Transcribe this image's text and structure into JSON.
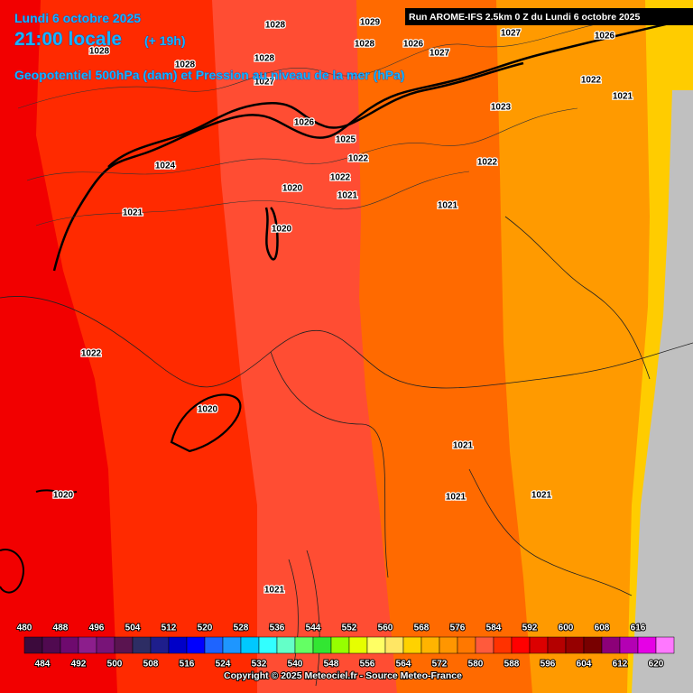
{
  "header": {
    "date": "Lundi 6 octobre 2025",
    "time": "21:00 locale",
    "lead": "(+ 19h)",
    "subtitle": "Geopotentiel 500hPa (dam) et Pression au niveau de la mer (hPa)",
    "run": "Run AROME-IFS 2.5km 0 Z du Lundi 6 octobre 2025"
  },
  "isobar_labels": [
    "1028",
    "1029",
    "1027",
    "1026",
    "1028",
    "1026",
    "1027",
    "1028",
    "1028",
    "1028",
    "1022",
    "1021",
    "1023",
    "1027",
    "1026",
    "1025",
    "1022",
    "1022",
    "1024",
    "1022",
    "1020",
    "1021",
    "1021",
    "1021",
    "1020",
    "1022",
    "1020",
    "1021",
    "1021",
    "1021",
    "1020",
    "1021"
  ],
  "scale": {
    "levels": [
      480,
      484,
      488,
      492,
      496,
      500,
      504,
      508,
      512,
      516,
      520,
      524,
      528,
      532,
      536,
      540,
      544,
      548,
      552,
      556,
      560,
      564,
      568,
      572,
      576,
      580,
      584,
      588,
      592,
      596,
      600,
      604,
      608,
      612,
      616,
      620
    ],
    "colors": [
      "#3c0a3c",
      "#500a50",
      "#6e0a6e",
      "#8c1e8c",
      "#781478",
      "#5a1450",
      "#2d2d64",
      "#1e1e8c",
      "#0000c8",
      "#0000ff",
      "#1e64ff",
      "#1e96ff",
      "#00c8ff",
      "#32ffff",
      "#64ffc8",
      "#64ff64",
      "#32e632",
      "#96ff00",
      "#e6ff00",
      "#ffff64",
      "#ffe664",
      "#ffd200",
      "#ffb400",
      "#ff9600",
      "#ff7800",
      "#ff5a3c",
      "#ff3200",
      "#ff0000",
      "#dc0000",
      "#b40000",
      "#960000",
      "#780000",
      "#8c0078",
      "#b400b4",
      "#e600e6",
      "#ff78ff"
    ]
  },
  "footer": {
    "copyright": "Copyright © 2025 Meteociel.fr - Source Meteo-France"
  }
}
